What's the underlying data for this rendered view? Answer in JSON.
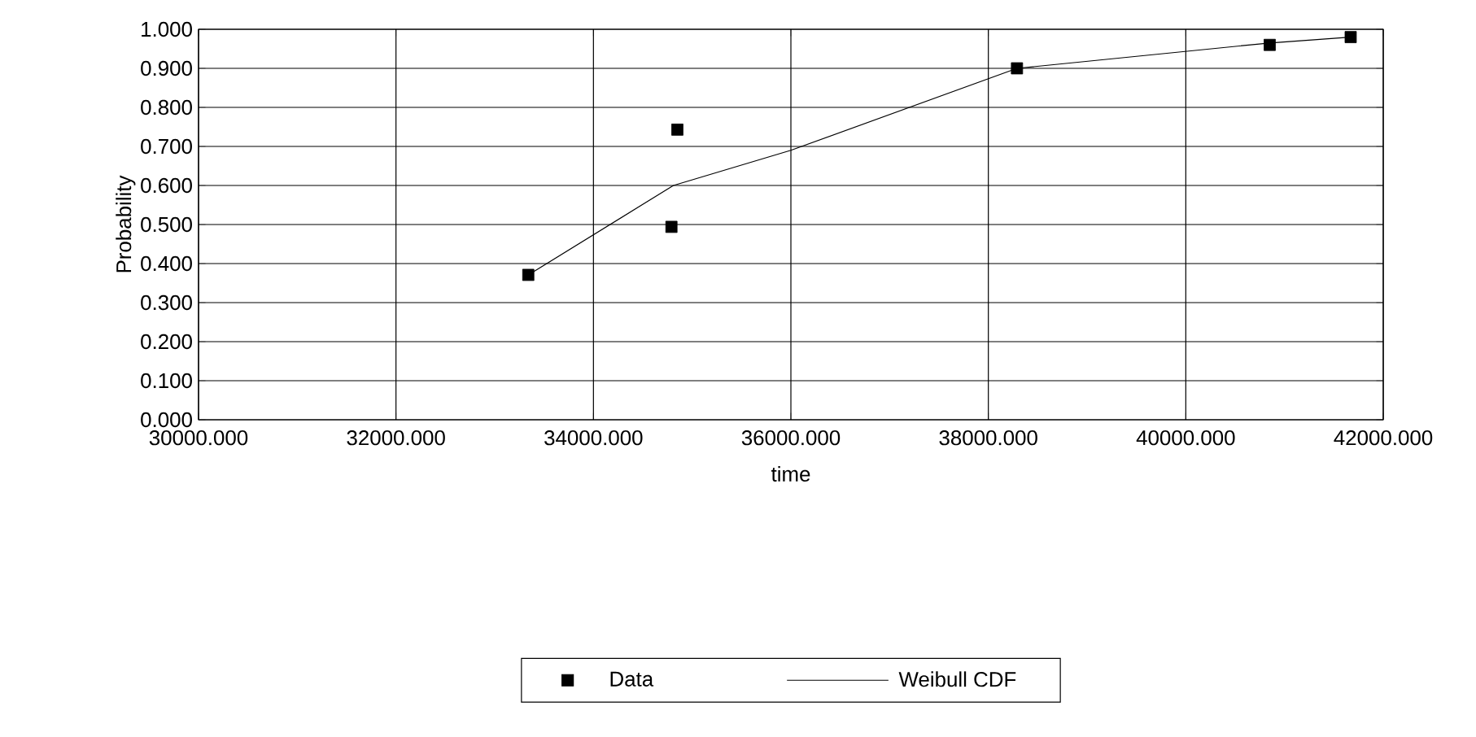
{
  "chart_data": {
    "type": "scatter",
    "xlabel": "time",
    "ylabel": "Probability",
    "series": [
      {
        "name": "Data",
        "color": "#000000",
        "marker": "square",
        "x": [
          33340,
          34790,
          34850,
          38290,
          40850,
          41670
        ],
        "values": [
          0.371,
          0.494,
          0.743,
          0.9,
          0.96,
          0.98
        ]
      },
      {
        "name": "Weibull CDF",
        "type": "line",
        "color": "#000000",
        "marker": "none",
        "line_style": "solid",
        "x": [
          33340,
          34810,
          36000,
          38290,
          40850,
          41670
        ],
        "values": [
          0.371,
          0.6,
          0.69,
          0.9,
          0.965,
          0.98
        ]
      }
    ],
    "xlim": [
      30000,
      42000
    ],
    "ylim": [
      0,
      1
    ],
    "xticks": [
      {
        "value": 30000,
        "label": "30000.000"
      },
      {
        "value": 32000,
        "label": "32000.000"
      },
      {
        "value": 34000,
        "label": "34000.000"
      },
      {
        "value": 36000,
        "label": "36000.000"
      },
      {
        "value": 38000,
        "label": "38000.000"
      },
      {
        "value": 40000,
        "label": "40000.000"
      },
      {
        "value": 42000,
        "label": "42000.000"
      }
    ],
    "yticks": [
      {
        "value": 0,
        "label": "0.000"
      },
      {
        "value": 0.1,
        "label": "0.100"
      },
      {
        "value": 0.2,
        "label": "0.200"
      },
      {
        "value": 0.3,
        "label": "0.300"
      },
      {
        "value": 0.4,
        "label": "0.400"
      },
      {
        "value": 0.5,
        "label": "0.500"
      },
      {
        "value": 0.6,
        "label": "0.600"
      },
      {
        "value": 0.7,
        "label": "0.700"
      },
      {
        "value": 0.8,
        "label": "0.800"
      },
      {
        "value": 0.9,
        "label": "0.900"
      },
      {
        "value": 1,
        "label": "1.000"
      }
    ],
    "grid": true,
    "legend": "bottom"
  }
}
